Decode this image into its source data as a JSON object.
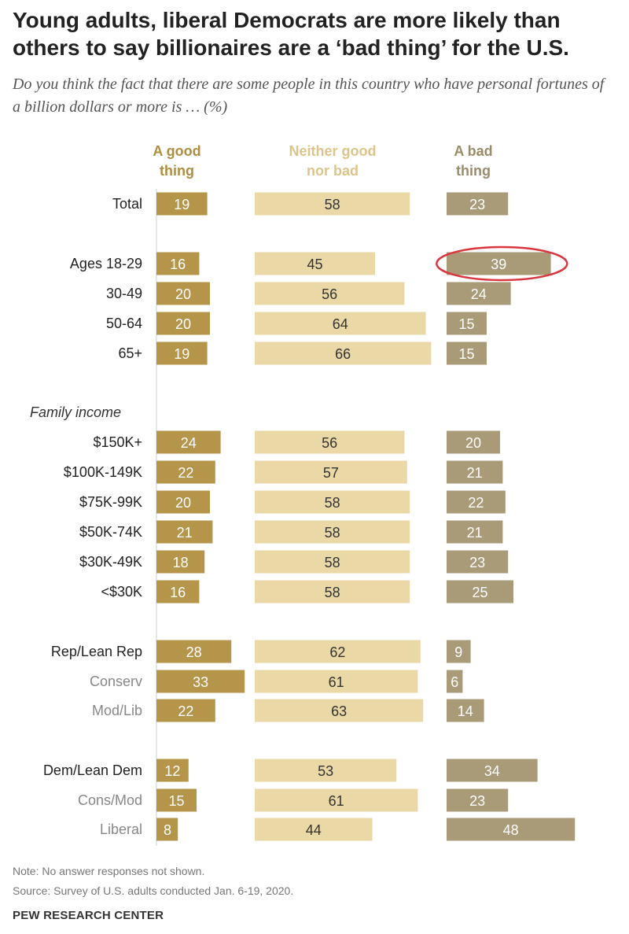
{
  "title": "Young adults, liberal Democrats are more likely than others to say billionaires are a ‘bad thing’ for the U.S.",
  "subtitle": "Do you think the fact that there are some people in this country who have personal fortunes of a billion dollars or more is … (%)",
  "note": "Note: No answer responses not shown.",
  "source": "Source: Survey of U.S. adults conducted Jan. 6-19, 2020.",
  "brand": "PEW RESEARCH CENTER",
  "colors": {
    "good": "#b5954a",
    "neither": "#ead8a6",
    "bad": "#a99a78",
    "good_header": "#b08d3f",
    "neither_header": "#ddc58a",
    "bad_header": "#9a8c6a",
    "highlight_ring": "#d9363e"
  },
  "chart_data": {
    "type": "bar",
    "columns": [
      {
        "key": "good",
        "header": [
          "A good",
          "thing"
        ]
      },
      {
        "key": "neither",
        "header": [
          "Neither good",
          "nor bad"
        ]
      },
      {
        "key": "bad",
        "header": [
          "A bad",
          "thing"
        ]
      }
    ],
    "rows": [
      {
        "label": "Total",
        "good": 19,
        "neither": 58,
        "bad": 23
      },
      {
        "label": "Ages 18-29",
        "good": 16,
        "neither": 45,
        "bad": 39,
        "highlight_bad": true
      },
      {
        "label": "30-49",
        "good": 20,
        "neither": 56,
        "bad": 24
      },
      {
        "label": "50-64",
        "good": 20,
        "neither": 64,
        "bad": 15
      },
      {
        "label": "65+",
        "good": 19,
        "neither": 66,
        "bad": 15
      },
      {
        "section": "Family income"
      },
      {
        "label": "$150K+",
        "good": 24,
        "neither": 56,
        "bad": 20
      },
      {
        "label": "$100K-149K",
        "good": 22,
        "neither": 57,
        "bad": 21
      },
      {
        "label": "$75K-99K",
        "good": 20,
        "neither": 58,
        "bad": 22
      },
      {
        "label": "$50K-74K",
        "good": 21,
        "neither": 58,
        "bad": 21
      },
      {
        "label": "$30K-49K",
        "good": 18,
        "neither": 58,
        "bad": 23
      },
      {
        "label": "<$30K",
        "good": 16,
        "neither": 58,
        "bad": 25
      },
      {
        "label": "Rep/Lean Rep",
        "good": 28,
        "neither": 62,
        "bad": 9
      },
      {
        "label": "Conserv",
        "good": 33,
        "neither": 61,
        "bad": 6,
        "sub": true
      },
      {
        "label": "Mod/Lib",
        "good": 22,
        "neither": 63,
        "bad": 14,
        "sub": true
      },
      {
        "label": "Dem/Lean Dem",
        "good": 12,
        "neither": 53,
        "bad": 34
      },
      {
        "label": "Cons/Mod",
        "good": 15,
        "neither": 61,
        "bad": 23,
        "sub": true
      },
      {
        "label": "Liberal",
        "good": 8,
        "neither": 44,
        "bad": 48,
        "sub": true
      }
    ]
  }
}
